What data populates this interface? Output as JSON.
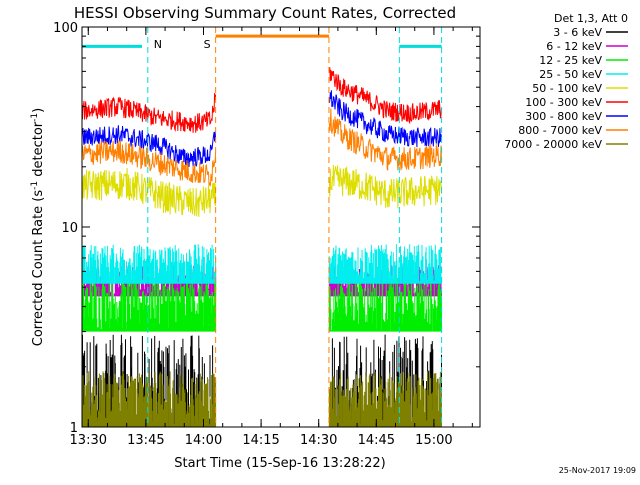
{
  "chart_data": {
    "type": "line",
    "title": "HESSI Observing Summary Count Rates, Corrected",
    "xlabel": "Start Time (15-Sep-16 13:28:22)",
    "ylabel": "Corrected Count Rate (s",
    "ylabel_sup1": "-1",
    "ylabel_mid": " detector",
    "ylabel_sup2": "-1",
    "ylabel_end": ")",
    "yscale": "log",
    "xlim": [
      "13:28:22",
      "15:12:00"
    ],
    "ylim": [
      1,
      100
    ],
    "x_ticks": [
      "13:30",
      "13:45",
      "14:00",
      "14:15",
      "14:30",
      "14:45",
      "15:00"
    ],
    "y_ticks": [
      "1",
      "10",
      "100"
    ],
    "date_stamp": "25-Nov-2017 19:09",
    "legend": {
      "placement": "top-right",
      "header": "Det 1,3, Att 0",
      "entries": [
        {
          "label": "3 - 6 keV",
          "color": "#000000"
        },
        {
          "label": "6 - 12 keV",
          "color": "#cc00cc"
        },
        {
          "label": "12 - 25 keV",
          "color": "#00ee00"
        },
        {
          "label": "25 - 50 keV",
          "color": "#00eeee"
        },
        {
          "label": "50 - 100 keV",
          "color": "#dddd00"
        },
        {
          "label": "100 - 300 keV",
          "color": "#ff0000"
        },
        {
          "label": "300 - 800 keV",
          "color": "#0000ff"
        },
        {
          "label": "800 - 7000 keV",
          "color": "#ff7f00"
        },
        {
          "label": "7000 - 20000 keV",
          "color": "#808000"
        }
      ]
    },
    "gaps": [
      [
        "14:03:10",
        "14:32:40"
      ]
    ],
    "annotations": [
      {
        "label": "N",
        "start": "13:45:30",
        "end": "13:45:30",
        "color": "#00dddd"
      },
      {
        "label": "S",
        "start": "14:03:10",
        "end": "14:32:40",
        "color": "#ff7f00"
      }
    ],
    "bars": [
      {
        "start": "13:28:22",
        "end": "13:44:00",
        "level": 80,
        "color": "#00dddd"
      },
      {
        "start": "14:03:10",
        "end": "14:32:40",
        "level": 90,
        "color": "#ff7f00"
      },
      {
        "start": "14:51:00",
        "end": "15:02:00",
        "level": 80,
        "color": "#00dddd"
      }
    ],
    "vlines": [
      {
        "time": "13:28:22",
        "color": "#00dddd"
      },
      {
        "time": "13:45:30",
        "color": "#00dddd"
      },
      {
        "time": "14:03:10",
        "color": "#ff7f00"
      },
      {
        "time": "14:32:40",
        "color": "#ff7f00"
      },
      {
        "time": "14:51:00",
        "color": "#00dddd"
      },
      {
        "time": "15:02:00",
        "color": "#00dddd"
      }
    ],
    "series": [
      {
        "name": "3 - 6 keV",
        "color": "#000000",
        "kind": "noise",
        "lo": 1,
        "hi": 2.9,
        "points": [
          [
            "13:28:22",
            1.5
          ],
          [
            "15:02:00",
            1.5
          ]
        ]
      },
      {
        "name": "6 - 12 keV",
        "color": "#cc00cc",
        "kind": "band",
        "lo": 4.5,
        "hi": 6.5,
        "points": [
          [
            "13:28:22",
            5.5
          ],
          [
            "15:02:00",
            5.5
          ]
        ]
      },
      {
        "name": "12 - 25 keV",
        "color": "#00ee00",
        "kind": "band",
        "lo": 3.0,
        "hi": 5.6,
        "points": [
          [
            "13:28:22",
            4.2
          ],
          [
            "15:02:00",
            4.2
          ]
        ]
      },
      {
        "name": "25 - 50 keV",
        "color": "#00eeee",
        "kind": "band",
        "lo": 5.2,
        "hi": 8.2,
        "points": [
          [
            "13:28:22",
            6.5
          ],
          [
            "15:02:00",
            6.5
          ]
        ]
      },
      {
        "name": "50 - 100 keV",
        "color": "#dddd00",
        "kind": "line",
        "noise": 0.08,
        "points": [
          [
            "13:28:22",
            16
          ],
          [
            "13:40:00",
            16.5
          ],
          [
            "13:50:00",
            14
          ],
          [
            "13:58:00",
            13
          ],
          [
            "14:03:00",
            14
          ],
          [
            "14:32:40",
            17
          ],
          [
            "14:36:00",
            17
          ],
          [
            "14:42:00",
            16
          ],
          [
            "14:48:00",
            14.5
          ],
          [
            "14:55:00",
            15
          ],
          [
            "15:02:00",
            15.5
          ]
        ]
      },
      {
        "name": "100 - 300 keV",
        "color": "#ff0000",
        "kind": "line",
        "noise": 0.05,
        "points": [
          [
            "13:28:22",
            38
          ],
          [
            "13:38:00",
            40
          ],
          [
            "13:48:00",
            35
          ],
          [
            "13:58:00",
            33
          ],
          [
            "14:02:00",
            34
          ],
          [
            "14:03:10",
            44
          ],
          [
            "14:32:40",
            60
          ],
          [
            "14:36:00",
            50
          ],
          [
            "14:42:00",
            44
          ],
          [
            "14:48:00",
            38
          ],
          [
            "14:55:00",
            37
          ],
          [
            "15:02:00",
            39
          ]
        ]
      },
      {
        "name": "300 - 800 keV",
        "color": "#0000ff",
        "kind": "line",
        "noise": 0.05,
        "points": [
          [
            "13:28:22",
            28
          ],
          [
            "13:38:00",
            29
          ],
          [
            "13:48:00",
            26
          ],
          [
            "13:55:00",
            22
          ],
          [
            "14:02:00",
            23
          ],
          [
            "14:03:10",
            30
          ],
          [
            "14:32:40",
            45
          ],
          [
            "14:36:00",
            38
          ],
          [
            "14:42:00",
            33
          ],
          [
            "14:48:00",
            29
          ],
          [
            "14:55:00",
            28
          ],
          [
            "15:02:00",
            28
          ]
        ]
      },
      {
        "name": "800 - 7000 keV",
        "color": "#ff7f00",
        "kind": "line",
        "noise": 0.06,
        "points": [
          [
            "13:28:22",
            23
          ],
          [
            "13:38:00",
            24
          ],
          [
            "13:48:00",
            21
          ],
          [
            "13:56:00",
            19
          ],
          [
            "14:02:00",
            18
          ],
          [
            "14:03:10",
            24
          ],
          [
            "14:32:40",
            35
          ],
          [
            "14:36:00",
            29
          ],
          [
            "14:42:00",
            25
          ],
          [
            "14:48:00",
            22
          ],
          [
            "14:55:00",
            22
          ],
          [
            "15:02:00",
            23
          ]
        ]
      },
      {
        "name": "7000 - 20000 keV",
        "color": "#808000",
        "kind": "band",
        "lo": 1.0,
        "hi": 1.9,
        "points": [
          [
            "13:28:22",
            1.4
          ],
          [
            "15:02:00",
            1.4
          ]
        ]
      }
    ]
  }
}
